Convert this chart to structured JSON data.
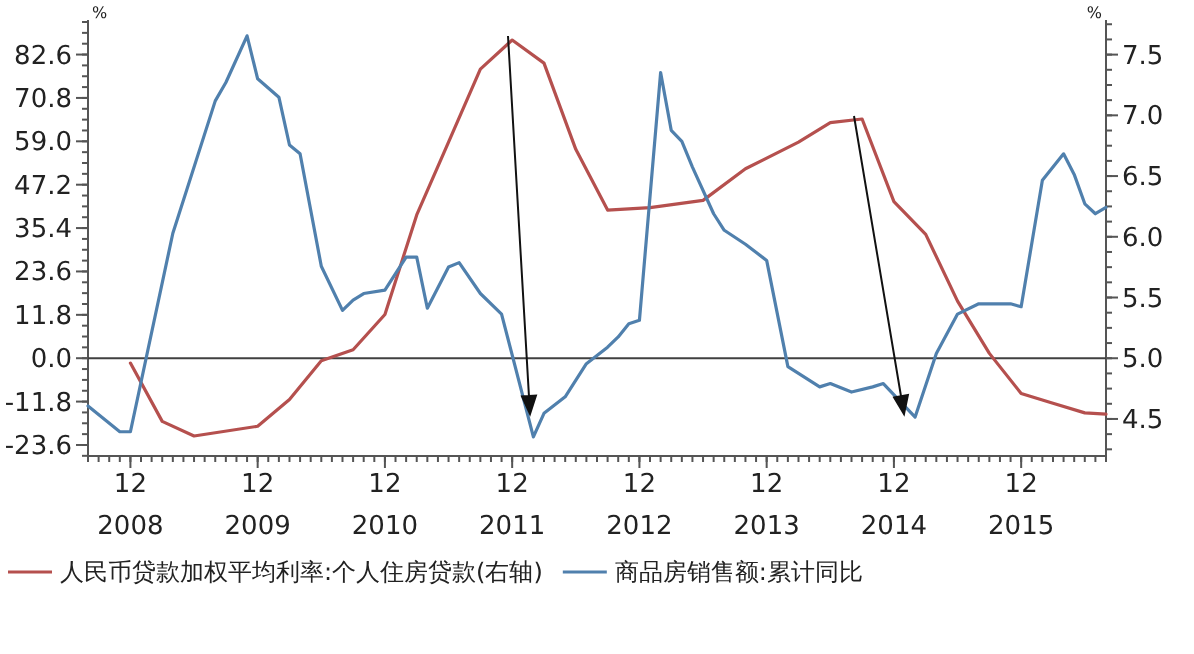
{
  "chart_data": {
    "type": "line",
    "ylabel": "%",
    "y2label": "%",
    "xlim": [
      "2008-08",
      "2016-08"
    ],
    "xticks": [
      {
        "value": "2008-12",
        "label": "12\n2008"
      },
      {
        "value": "2009-12",
        "label": "12\n2009"
      },
      {
        "value": "2010-12",
        "label": "12\n2010"
      },
      {
        "value": "2011-12",
        "label": "12\n2011"
      },
      {
        "value": "2012-12",
        "label": "12\n2012"
      },
      {
        "value": "2013-12",
        "label": "12\n2013"
      },
      {
        "value": "2014-12",
        "label": "12\n2014"
      },
      {
        "value": "2015-12",
        "label": "12\n2015"
      }
    ],
    "ylim": [
      -26.6,
      92
    ],
    "yticks": [
      {
        "value": 82.6,
        "label": "82.6"
      },
      {
        "value": 70.8,
        "label": "70.8"
      },
      {
        "value": 59,
        "label": "59.0"
      },
      {
        "value": 47.2,
        "label": "47.2"
      },
      {
        "value": 35.4,
        "label": "35.4"
      },
      {
        "value": 23.6,
        "label": "23.6"
      },
      {
        "value": 11.8,
        "label": "11.8"
      },
      {
        "value": 0,
        "label": "0.0"
      },
      {
        "value": -11.8,
        "label": "-11.8"
      },
      {
        "value": -23.6,
        "label": "-23.6"
      }
    ],
    "y2lim": [
      4.195,
      7.785
    ],
    "y2ticks": [
      {
        "value": 4.5,
        "label": "4.5"
      },
      {
        "value": 5,
        "label": "5.0"
      },
      {
        "value": 5.5,
        "label": "5.5"
      },
      {
        "value": 6,
        "label": "6.0"
      },
      {
        "value": 6.5,
        "label": "6.5"
      },
      {
        "value": 7,
        "label": "7.0"
      },
      {
        "value": 7.5,
        "label": "7.5"
      }
    ],
    "ref_lines": [
      {
        "axis": "y",
        "value": 0,
        "color": "#404040"
      }
    ],
    "legend": "bottom",
    "grid": false,
    "marker": "none",
    "line_style": "solid",
    "series": [
      {
        "name": "人民币贷款加权平均利率:个人住房贷款(右轴)",
        "color": "#b5504e",
        "axis": "y2",
        "x": [
          "2008-12",
          "2009-03",
          "2009-06",
          "2009-12",
          "2010-03",
          "2010-06",
          "2010-09",
          "2010-12",
          "2011-03",
          "2011-06",
          "2011-09",
          "2011-12",
          "2012-03",
          "2012-06",
          "2012-09",
          "2013-01",
          "2013-06",
          "2013-10",
          "2014-03",
          "2014-06",
          "2014-09",
          "2014-12",
          "2015-03",
          "2015-06",
          "2015-09",
          "2015-12",
          "2016-03",
          "2016-06",
          "2016-08"
        ],
        "values": [
          4.96,
          4.48,
          4.36,
          4.44,
          4.66,
          4.98,
          5.07,
          5.36,
          6.18,
          6.78,
          7.38,
          7.62,
          7.43,
          6.72,
          6.22,
          6.24,
          6.3,
          6.56,
          6.78,
          6.94,
          6.97,
          6.29,
          6.02,
          5.47,
          5.04,
          4.71,
          4.63,
          4.55,
          4.54
        ]
      },
      {
        "name": "商品房销售额:累计同比",
        "color": "#5080ad",
        "axis": "y",
        "x": [
          "2008-08",
          "2008-11",
          "2008-12",
          "2009-04",
          "2009-08",
          "2009-09",
          "2009-11",
          "2009-12",
          "2010-02",
          "2010-03",
          "2010-04",
          "2010-06",
          "2010-08",
          "2010-09",
          "2010-10",
          "2010-12",
          "2011-02",
          "2011-03",
          "2011-04",
          "2011-06",
          "2011-07",
          "2011-09",
          "2011-11",
          "2012-02",
          "2012-03",
          "2012-05",
          "2012-07",
          "2012-09",
          "2012-10",
          "2012-11",
          "2012-12",
          "2013-02",
          "2013-03",
          "2013-04",
          "2013-05",
          "2013-07",
          "2013-08",
          "2013-10",
          "2013-12",
          "2014-02",
          "2014-05",
          "2014-06",
          "2014-08",
          "2014-10",
          "2014-11",
          "2015-02",
          "2015-04",
          "2015-06",
          "2015-08",
          "2015-11",
          "2015-12",
          "2016-02",
          "2016-04",
          "2016-05",
          "2016-06",
          "2016-07",
          "2016-08"
        ],
        "values": [
          -13,
          -20,
          -20,
          34,
          70,
          75,
          87.7,
          76,
          71,
          58,
          55.6,
          25,
          13,
          15.8,
          17.6,
          18.5,
          27.5,
          27.5,
          13.6,
          24.8,
          26,
          17.6,
          12,
          -21.4,
          -15,
          -10.5,
          -1.5,
          3,
          5.8,
          9.4,
          10.3,
          77.7,
          62,
          59,
          52,
          39.3,
          34.8,
          31,
          26.6,
          -2.3,
          -7.8,
          -6.9,
          -9.2,
          -7.8,
          -6.9,
          -16,
          1.3,
          12,
          14.8,
          14.8,
          14,
          48.4,
          55.6,
          50,
          42,
          39.3,
          41
        ]
      }
    ]
  }
}
